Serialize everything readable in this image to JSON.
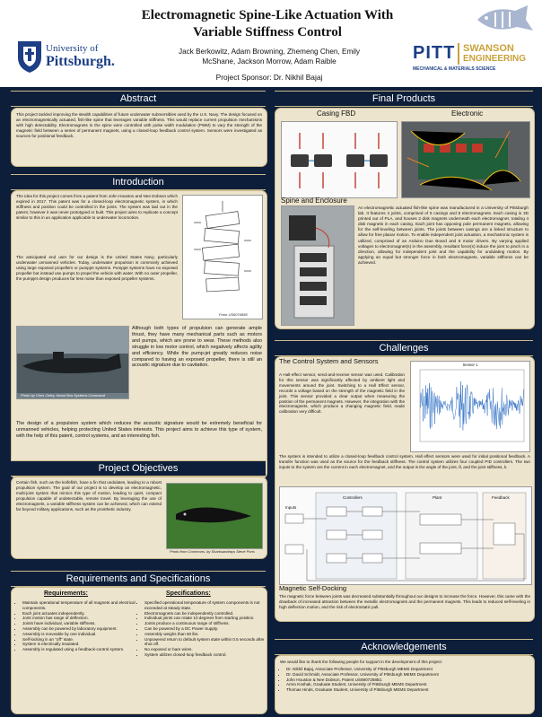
{
  "header": {
    "title_line1": "Electromagnetic Spine-Like Actuation With",
    "title_line2": "Variable Stiffness Control",
    "authors_line1": "Jack Berkowitz, Adam Browning, Zhemeng Chen, Emily",
    "authors_line2": "McShane, Jackson Morrow, Adam Raible",
    "sponsor": "Project Sponsor: Dr. Nikhil Bajaj",
    "pitt_logo_line1": "University of",
    "pitt_logo_line2": "Pittsburgh.",
    "swanson_pitt": "PITT",
    "swanson_name": "SWANSON",
    "swanson_eng": "ENGINEERING",
    "swanson_dept": "MECHANICAL & MATERIALS SCIENCE",
    "colors": {
      "navy": "#0d1e3a",
      "panel": "#ede4cd",
      "gold": "#c9b98a",
      "pitt_blue": "#1c3f86"
    }
  },
  "abstract": {
    "heading": "Abstract",
    "body": "This project tackled improving the stealth capabilities of future underwater submersibles used by the U.S. Navy. The design focused on an electromagnetically actuated, fish-like spine that leverages variable stiffness. This would replace current propulsion mechanisms with high detectability. Electromagnets in the spine were controlled with pulse width modulation (PWM) to vary the strength of the magnetic field between a series of permanent magnets, using a closed-loop feedback control system. Sensors were investigated as sources for positional feedback."
  },
  "introduction": {
    "heading": "Introduction",
    "para1": "The idea for this project comes from a patent from John Houston and Nee Dobson which expired in 2017. This patent was for a closed-loop electromagnetic system, in which stiffness and position could be controlled in the joints. The system was laid out in the patent, however it was never prototyped or built. This project aims to replicate a concept similar to this in an application applicable to underwater locomotion.",
    "para2": "The anticipated end user for our design is the United States Navy, particularly underwater unmanned vehicles. Today, underwater propulsion is commonly achieved using large exposed propellers or pumpjet systems. Pumpjet systems have no exposed propeller but instead use pumps to propel the vehicle with water. With no outer propeller, the pumpjet design produces far less noise than exposed propeller systems.",
    "fig1_caption": "From US6074658",
    "para3": "Although both types of propulsion can generate ample thrust, they have many mechanical parts such as motors and pumps, which are prone to wear. These methods also struggle in low motor control, which negatively affects agility and efficiency. While the pump-jet greatly reduces noise compared to having an exposed propeller, there is still an acoustic signature due to cavitation.",
    "fig2_caption": "Photo by Chris Oxley, Naval Sea Systems Command",
    "para4": "The design of a propulsion system which reduces the acoustic signature would be extremely beneficial for unmanned vehicles, helping protecting United States interests. This project aims to achieve this type of system, with the help of this patent, control systems, and an interesting fish."
  },
  "objectives": {
    "heading": "Project Objectives",
    "body": "Certain fish, such as the knifefish, have a fin that undulates, leading to a robust propulsion system. The goal of our project is to develop an electromagnetic, multi-joint system that mimics this type of motion, leading to quiet, compact propulsion capable of undetectable, remote travel. By leveraging the use of electromagnets, a variable stiffness system can be achieved, which can extend far beyond military applications, such as the prosthetic industry.",
    "fig_caption": "Photo from Commons, by Sharksandrays Steve Pons"
  },
  "requirements": {
    "heading": "Requirements and Specifications",
    "req_heading": "Requirements:",
    "spec_heading": "Specifications:",
    "requirements": [
      "Maintain operational temperature of all magnets and electrical components.",
      "Each joint actuates independently.",
      "Joint motion has range of deflection.",
      "Joints have individual, variable stiffness.",
      "Assembly can be powered by laboratory equipment.",
      "Assembly is moveable by one individual.",
      "Self-locking in an \"off\" state.",
      "System is electrically insulated.",
      "Assembly is regulated using a feedback-control system."
    ],
    "specifications": [
      "Specified operational temperature of system components is not exceeded at steady state.",
      "Electromagnets can be independently controlled.",
      "Individual joints can rotate 10 degrees from starting position.",
      "Joints produce a continuous range of stiffness.",
      "Can be powered by a DC Power Supply.",
      "Assembly weighs than 50 lbs.",
      "Unpowered return to default system state within 0.5 seconds after shut off.",
      "No exposed or bare wires.",
      "System utilizes closed-loop feedback control."
    ]
  },
  "final_products": {
    "heading": "Final Products",
    "casing_label": "Casing FBD",
    "electronic_label": "Electronic",
    "spine_label": "Spine and Enclosure",
    "body": "An electromagnetic actuated fish-like spine was manufactured in a University of Pittsburgh lab. It features 4 joints, comprised of 5 casings and 8 electromagnets. Each casing is 3D printed out of PLA, and houses 2 disk magnets underneath each electromagnet, totaling 4 disk magnets in each casing. Each joint has opposing pole permanent magnets, allowing for the self-leveling between joints. The joints between casings are a linked structure to allow for free planar motion. To enable independent joint actuation, a mechatronic system is utilized, comprised of an Arduino Due Board and 8 motor drivers. By varying applied voltages to electromagnet(s) in the assembly, resultant force(s) induce the joint to pinch in a direction, allowing for independent joint and the capability for undulating motion. By applying an equal but stronger force in both electromagnets, variable stiffness can be achieved."
  },
  "challenges": {
    "heading": "Challenges",
    "control_label": "The Control System and Sensors",
    "control_body": "A Hall-effect sensor, send-and-receive sensor was used. Calibration for this sensor was significantly affected by ambient light and movements around the joint. Switching to a Hall Effect sensor, records a voltage based on the strength of the magnetic field in the joint. This sensor provided a clear output when measuring the position of the permanent magnets. However, the integration with the electromagnets, which produce a changing magnetic field, made calibration very difficult.",
    "plot_title": "Sensor 1",
    "control_body2": "The system is intended to utilize a closed-loop feedback control system. Hall effect sensors were used for initial positional feedback. A transfer function was used as the source for the feedback stiffness. The control system utilizes four coupled PID controllers. The two inputs to the system are the current in each electromagnet, and the output is the angle of the joint, θ, and the joint stiffness, k.",
    "diagram_labels": {
      "inputs": "Inputs",
      "controllers": "Controllers",
      "plant": "Plant",
      "feedback": "Feedback"
    },
    "magnetic_label": "Magnetic Self-Docking",
    "magnetic_body": "The magnetic force between joints was decreased substantially throughout our designs to increase the force. However, this came with the drawback of increased attraction between the metallic electromagnets and the permanent magnets. This leads to reduced self-leveling in high deflection motion, and the risk of electrostatic pull."
  },
  "acknowledgements": {
    "heading": "Acknowledgements",
    "intro": "We would like to thank the following people for support in the development of this project:",
    "people": [
      "Dr. Nikhil Bajaj, Associate Professor, University of Pittsburgh MEMS Department",
      "Dr. David Schmidt, Associate Professor, University of Pittsburgh MEMS Department",
      "John Houston & Nee Dobson, Patent US6907258B1",
      "Amro Koshak, Graduate Student, University of Pittsburgh MEMS Department",
      "Thomas Hinds, Graduate Student, University of Pittsburgh MEMS Department"
    ]
  }
}
